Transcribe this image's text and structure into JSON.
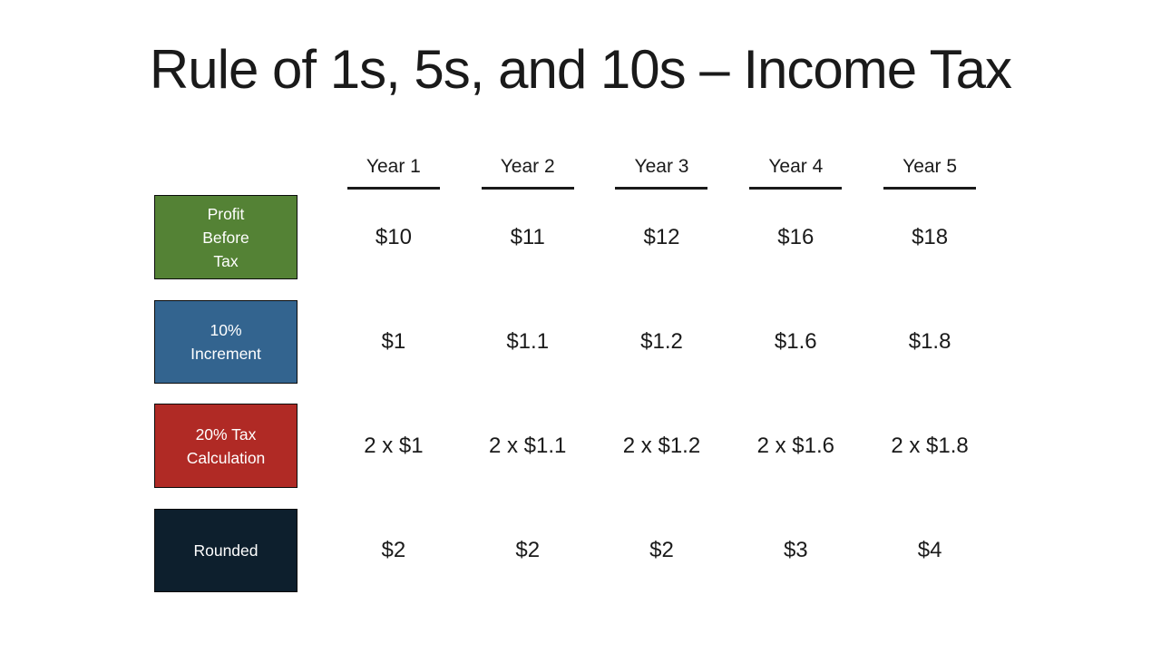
{
  "slide": {
    "title": "Rule of 1s, 5s, and 10s – Income Tax",
    "background": "#ffffff",
    "text_color": "#1a1a1a"
  },
  "table": {
    "columns": [
      "Year 1",
      "Year 2",
      "Year 3",
      "Year 4",
      "Year 5"
    ],
    "rows": [
      {
        "label": "Profit\nBefore\nTax",
        "color": "#548235",
        "values": [
          "$10",
          "$11",
          "$12",
          "$16",
          "$18"
        ]
      },
      {
        "label": "10%\nIncrement",
        "color": "#33648F",
        "values": [
          "$1",
          "$1.1",
          "$1.2",
          "$1.6",
          "$1.8"
        ]
      },
      {
        "label": "20% Tax\nCalculation",
        "color": "#B02A25",
        "values": [
          "2 x $1",
          "2 x $1.1",
          "2 x $1.2",
          "2 x $1.6",
          "2 x $1.8"
        ]
      },
      {
        "label": "Rounded",
        "color": "#0D1F2D",
        "values": [
          "$2",
          "$2",
          "$2",
          "$3",
          "$4"
        ]
      }
    ]
  }
}
